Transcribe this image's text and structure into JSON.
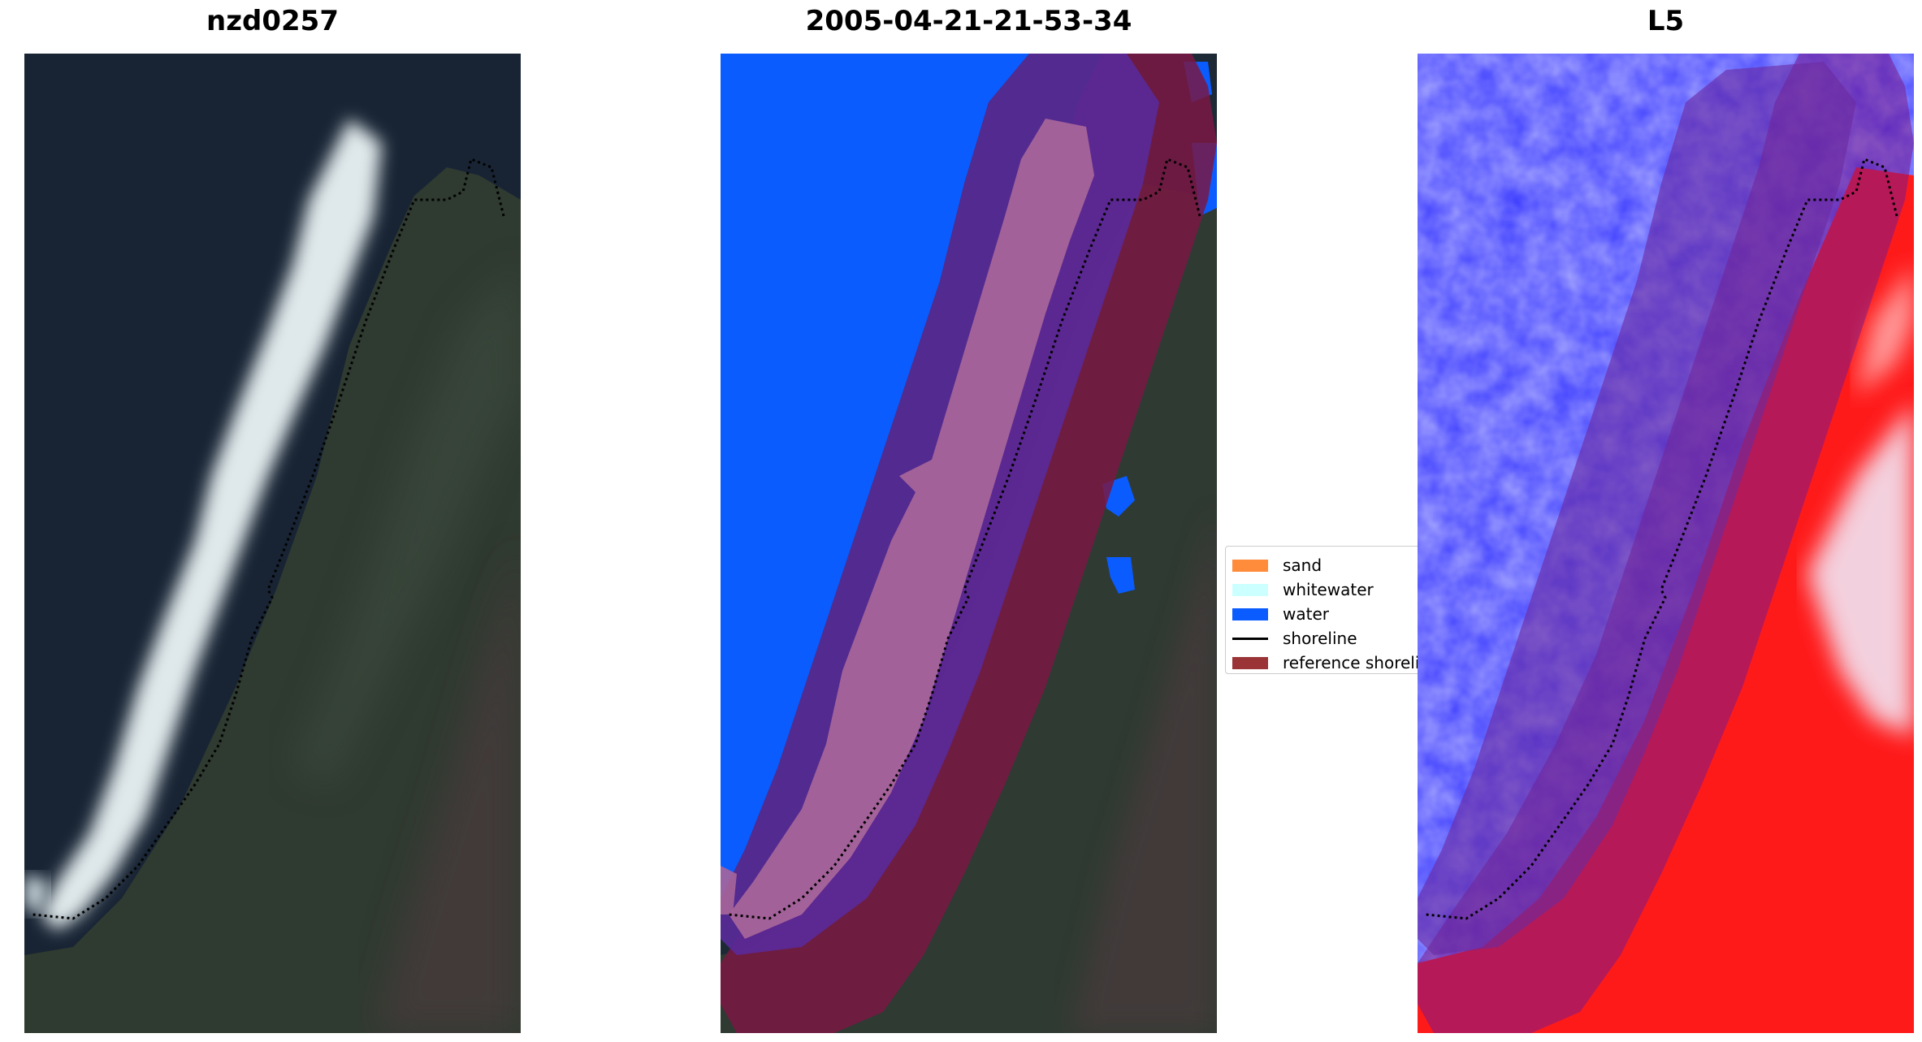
{
  "panels": [
    {
      "title": "nzd0257"
    },
    {
      "title": "2005-04-21-21-53-34"
    },
    {
      "title": "L5"
    }
  ],
  "legend": {
    "items": [
      {
        "label": "sand",
        "kind": "patch",
        "color": "#ff8c3a"
      },
      {
        "label": "whitewater",
        "kind": "patch",
        "color": "#ccffff"
      },
      {
        "label": "water",
        "kind": "patch",
        "color": "#0a5cff"
      },
      {
        "label": "shoreline",
        "kind": "line",
        "color": "#000000"
      },
      {
        "label": "reference shoreline",
        "kind": "patch",
        "color": "#9b3437"
      }
    ]
  },
  "colors": {
    "sea": "#1b2a3a",
    "land": "#2e3a32",
    "whitewater_rgb": "#e6eef0",
    "water_class": "#0a5cff",
    "buffer": "#7a1844",
    "beach_buffer": "#a7659a",
    "wet_buffer": "#5a2a9a",
    "index_water": "#3b3bff",
    "index_land": "#ff1a1a"
  }
}
